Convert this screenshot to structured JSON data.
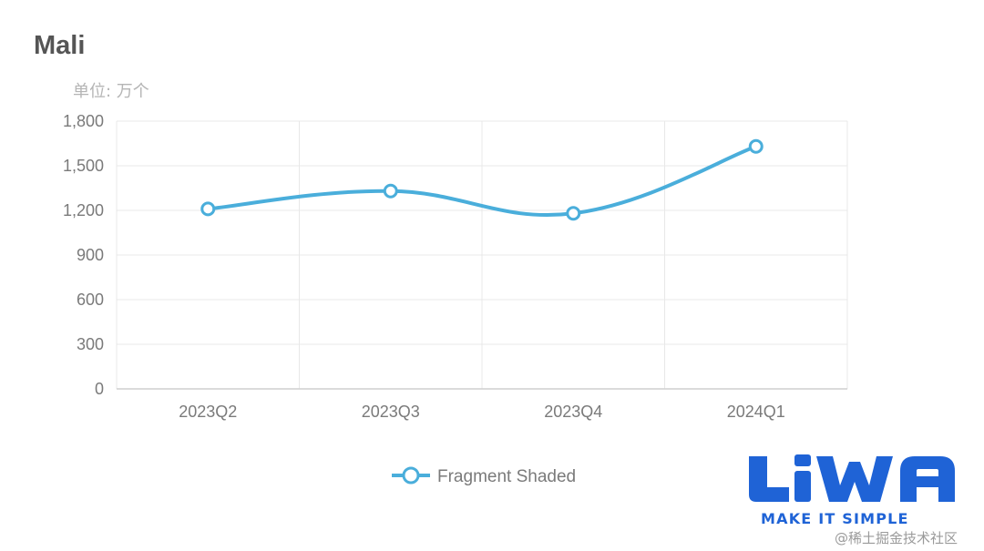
{
  "chart_data": {
    "type": "line",
    "title": "Mali",
    "unit_label": "单位: 万个",
    "categories": [
      "2023Q2",
      "2023Q3",
      "2023Q4",
      "2024Q1"
    ],
    "series": [
      {
        "name": "Fragment Shaded",
        "values": [
          1210,
          1330,
          1180,
          1630
        ],
        "color": "#4aaedb",
        "smooth": true
      }
    ],
    "ylim": [
      0,
      1800
    ],
    "yticks": [
      0,
      300,
      600,
      900,
      1200,
      1500,
      1800
    ],
    "ytick_labels": [
      "0",
      "300",
      "600",
      "900",
      "1,200",
      "1,500",
      "1,800"
    ],
    "grid": true,
    "legend_position": "bottom-center"
  },
  "branding": {
    "logo_text": "LiWA",
    "tagline": "MAKE IT SIMPLE",
    "logo_color": "#1f63d6",
    "watermark": "@稀土掘金技术社区"
  }
}
